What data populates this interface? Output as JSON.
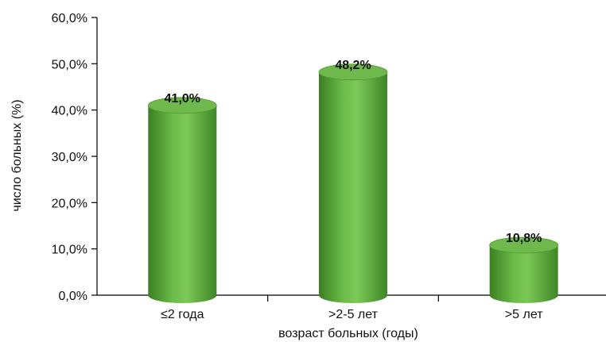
{
  "chart_data": {
    "type": "bar",
    "categories": [
      "≤2 года",
      ">2-5 лет",
      ">5 лет"
    ],
    "values": [
      41.0,
      48.2,
      10.8
    ],
    "data_labels": [
      "41,0%",
      "48,2%",
      "10,8%"
    ],
    "title": "",
    "xlabel": "возраст больных (годы)",
    "ylabel": "число больных (%)",
    "ylim": [
      0,
      60
    ],
    "yticks": [
      0,
      10,
      20,
      30,
      40,
      50,
      60
    ],
    "ytick_labels": [
      "0,0%",
      "10,0%",
      "20,0%",
      "30,0%",
      "40,0%",
      "50,0%",
      "60,0%"
    ],
    "grid": false,
    "legend": "none",
    "bar_style": "3d-cylinder",
    "colors": {
      "bar": "#5aa83a",
      "bar_dark": "#3b7f22",
      "bar_light": "#8fd067",
      "top": "#6fb94c"
    }
  }
}
